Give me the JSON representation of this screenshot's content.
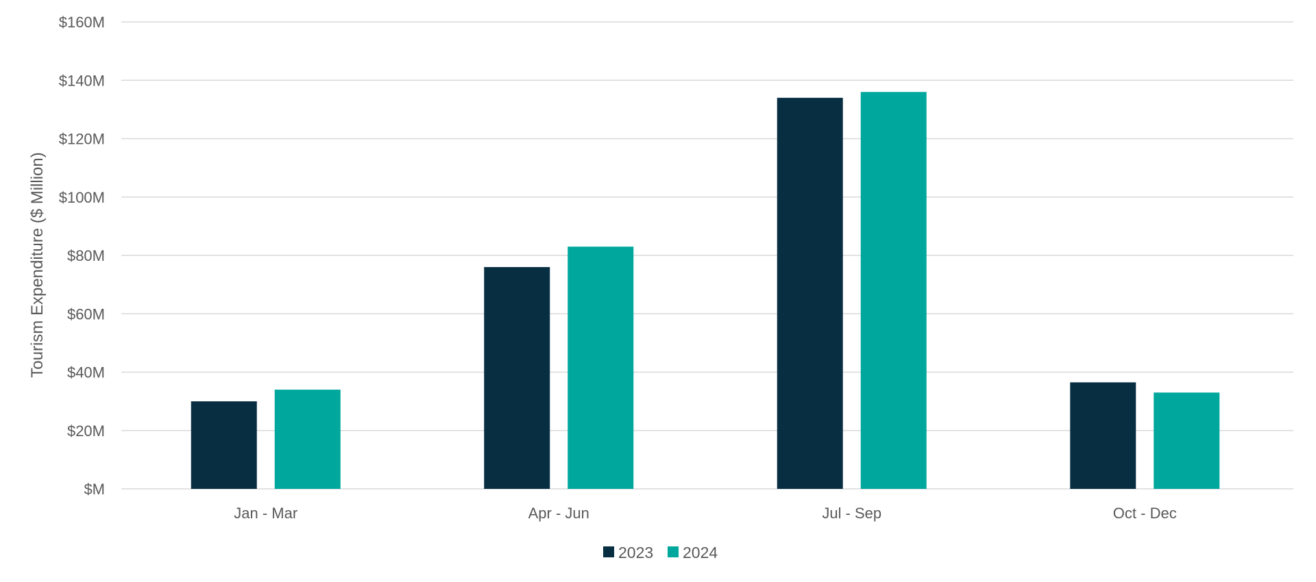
{
  "chart_data": {
    "type": "bar",
    "title": "",
    "xlabel": "",
    "ylabel": "Tourism Expenditure ($ Million)",
    "categories": [
      "Jan - Mar",
      "Apr - Jun",
      "Jul - Sep",
      "Oct - Dec"
    ],
    "series": [
      {
        "name": "2023",
        "color": "#082E42",
        "values": [
          30,
          76,
          134,
          36.5
        ]
      },
      {
        "name": "2024",
        "color": "#00A79D",
        "values": [
          34,
          83,
          136,
          33
        ]
      }
    ],
    "ylim": [
      0,
      160
    ],
    "yticks": [
      0,
      20,
      40,
      60,
      80,
      100,
      120,
      140,
      160
    ],
    "ytick_labels": [
      "$M",
      "$20M",
      "$40M",
      "$60M",
      "$80M",
      "$100M",
      "$120M",
      "$140M",
      "$160M"
    ],
    "grid": true,
    "legend_position": "bottom-center",
    "colors": {
      "grid": "#D9D9D9",
      "text": "#595959"
    }
  }
}
